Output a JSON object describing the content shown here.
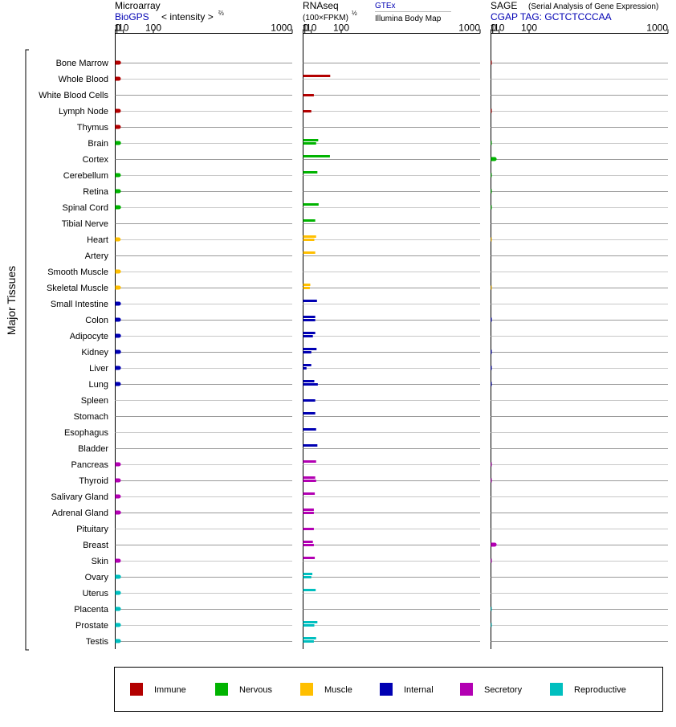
{
  "chart_data": {
    "type": "bar",
    "orientation": "horizontal",
    "group_label": "Major Tissues",
    "scale": "power 2/3 (intensity^(2/3), FPKM^(1/2))",
    "grid": true,
    "legend_position": "bottom",
    "categories": [
      "Bone Marrow",
      "Whole Blood",
      "White Blood Cells",
      "Lymph Node",
      "Thymus",
      "Brain",
      "Cortex",
      "Cerebellum",
      "Retina",
      "Spinal Cord",
      "Tibial Nerve",
      "Heart",
      "Artery",
      "Smooth Muscle",
      "Skeletal Muscle",
      "Small Intestine",
      "Colon",
      "Adipocyte",
      "Kidney",
      "Liver",
      "Lung",
      "Spleen",
      "Stomach",
      "Esophagus",
      "Bladder",
      "Pancreas",
      "Thyroid",
      "Salivary Gland",
      "Adrenal Gland",
      "Pituitary",
      "Breast",
      "Skin",
      "Ovary",
      "Uterus",
      "Placenta",
      "Prostate",
      "Testis"
    ],
    "groups": [
      "Immune",
      "Immune",
      "Immune",
      "Immune",
      "Immune",
      "Nervous",
      "Nervous",
      "Nervous",
      "Nervous",
      "Nervous",
      "Nervous",
      "Muscle",
      "Muscle",
      "Muscle",
      "Muscle",
      "Internal",
      "Internal",
      "Internal",
      "Internal",
      "Internal",
      "Internal",
      "Internal",
      "Internal",
      "Internal",
      "Internal",
      "Secretory",
      "Secretory",
      "Secretory",
      "Secretory",
      "Secretory",
      "Secretory",
      "Secretory",
      "Reproductive",
      "Reproductive",
      "Reproductive",
      "Reproductive",
      "Reproductive"
    ],
    "legend": [
      {
        "name": "Immune",
        "color": "#b30000"
      },
      {
        "name": "Nervous",
        "color": "#00b300"
      },
      {
        "name": "Muscle",
        "color": "#ffbf00"
      },
      {
        "name": "Internal",
        "color": "#0000b3"
      },
      {
        "name": "Secretory",
        "color": "#b300b3"
      },
      {
        "name": "Reproductive",
        "color": "#00bfbf"
      }
    ],
    "panels": [
      {
        "id": "microarray",
        "title": "Microarray",
        "title_suffix": "< intensity >",
        "title_suffix_exponent": "⅔",
        "subtitle": "BioGPS",
        "ticks": [
          "0",
          "1",
          "10",
          "100",
          "1000"
        ],
        "tick_values": [
          0,
          1,
          10,
          100,
          1000
        ],
        "xlim": [
          0,
          1000
        ],
        "series": [
          {
            "name": "BioGPS",
            "values": [
              3.1,
              2.9,
              null,
              2.9,
              2.9,
              3.1,
              null,
              2.9,
              3.0,
              3.1,
              null,
              2.7,
              null,
              3.0,
              3.0,
              3.0,
              3.0,
              3.1,
              3.1,
              3.0,
              2.9,
              null,
              null,
              null,
              null,
              2.9,
              2.9,
              2.9,
              3.1,
              null,
              null,
              2.9,
              3.1,
              3.0,
              3.0,
              3.0,
              3.0
            ]
          }
        ]
      },
      {
        "id": "rnaseq",
        "title": "RNAseq",
        "subtitle": "(100×FPKM)",
        "subtitle_exponent": "½",
        "legend_entries": [
          "GTEx",
          "Illumina Body Map"
        ],
        "ticks": [
          "0",
          "1",
          "10",
          "100",
          "1000"
        ],
        "tick_values": [
          0,
          1,
          10,
          100,
          1000
        ],
        "xlim": [
          0,
          1000
        ],
        "series": [
          {
            "name": "GTEx",
            "values": [
              null,
              60,
              null,
              null,
              null,
              25,
              59,
              23,
              null,
              26,
              18,
              20,
              18,
              null,
              8.2,
              22,
              18,
              18,
              21,
              9.9,
              16,
              null,
              18,
              20,
              23,
              20,
              18,
              17,
              15,
              null,
              13,
              17,
              12,
              19,
              null,
              23,
              20
            ]
          },
          {
            "name": "Illumina Body Map",
            "values": [
              null,
              null,
              15,
              10,
              null,
              20,
              null,
              null,
              null,
              null,
              null,
              16,
              null,
              null,
              7.4,
              null,
              18,
              13,
              10,
              2.7,
              24,
              18,
              null,
              null,
              null,
              null,
              20,
              null,
              15,
              15,
              15,
              null,
              10,
              null,
              null,
              16,
              15
            ]
          }
        ]
      },
      {
        "id": "sage",
        "title": "SAGE",
        "title_note": "(Serial Analysis of Gene Expression)",
        "subtitle": "CGAP TAG: GCTCTCCCAA",
        "ticks": [
          "0",
          "1",
          "10",
          "100",
          "1000"
        ],
        "tick_values": [
          0,
          1,
          10,
          100,
          1000
        ],
        "xlim": [
          0,
          1000
        ],
        "series": [
          {
            "name": "CGAP SAGE",
            "values": [
              0.1,
              null,
              null,
              0.1,
              null,
              0.05,
              3.0,
              0.05,
              0.05,
              0.05,
              null,
              0.05,
              null,
              null,
              0.05,
              null,
              0.1,
              null,
              0.1,
              0.1,
              0.1,
              null,
              null,
              null,
              null,
              0.1,
              0.1,
              null,
              null,
              null,
              3.0,
              0.1,
              null,
              null,
              0.05,
              0.05,
              null
            ]
          }
        ]
      }
    ]
  }
}
